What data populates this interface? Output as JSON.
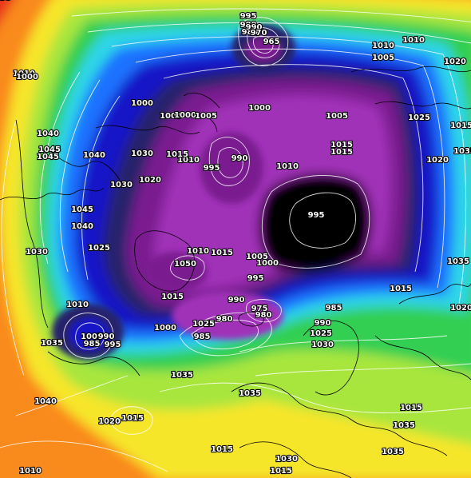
{
  "map": {
    "title_fragment": "",
    "colors": {
      "outer": "#e8321e",
      "orange": "#f98a1a",
      "yellow": "#f6e62a",
      "light_green": "#a8e63c",
      "green": "#33cf52",
      "cyan": "#2fd5e8",
      "blue": "#1c72ff",
      "dark_blue": "#1616c8",
      "navy": "#25206a",
      "purple": "#7a1f90",
      "magenta": "#a030b8",
      "black": "#050005",
      "isobar": "#ffffff",
      "coast": "#000000"
    },
    "labels": [
      {
        "text": "995"
      },
      {
        "text": "980"
      },
      {
        "text": "985"
      },
      {
        "text": "990"
      },
      {
        "text": "970"
      },
      {
        "text": "965"
      },
      {
        "text": "1010"
      },
      {
        "text": "1010"
      },
      {
        "text": "1005"
      },
      {
        "text": "1020"
      },
      {
        "text": "1015"
      },
      {
        "text": "1020"
      },
      {
        "text": "1010"
      },
      {
        "text": "1000"
      },
      {
        "text": "1000"
      },
      {
        "text": "1005"
      },
      {
        "text": "1025"
      },
      {
        "text": "1000"
      },
      {
        "text": "1000"
      },
      {
        "text": "1005"
      },
      {
        "text": "1005"
      },
      {
        "text": "1015"
      },
      {
        "text": "1010"
      },
      {
        "text": "1040"
      },
      {
        "text": "1045"
      },
      {
        "text": "1045"
      },
      {
        "text": "1040"
      },
      {
        "text": "1030"
      },
      {
        "text": "995"
      },
      {
        "text": "990"
      },
      {
        "text": "1010"
      },
      {
        "text": "1015"
      },
      {
        "text": "1015"
      },
      {
        "text": "1020"
      },
      {
        "text": "1035"
      },
      {
        "text": "1030"
      },
      {
        "text": "1020"
      },
      {
        "text": "995"
      },
      {
        "text": "1045"
      },
      {
        "text": "1040"
      },
      {
        "text": "1030"
      },
      {
        "text": "1025"
      },
      {
        "text": "1010"
      },
      {
        "text": "1015"
      },
      {
        "text": "1005"
      },
      {
        "text": "1000"
      },
      {
        "text": "1050"
      },
      {
        "text": "1035"
      },
      {
        "text": "995"
      },
      {
        "text": "1015"
      },
      {
        "text": "1015"
      },
      {
        "text": "1010"
      },
      {
        "text": "990"
      },
      {
        "text": "975"
      },
      {
        "text": "980"
      },
      {
        "text": "985"
      },
      {
        "text": "1020"
      },
      {
        "text": "1035"
      },
      {
        "text": "1005"
      },
      {
        "text": "985"
      },
      {
        "text": "990"
      },
      {
        "text": "995"
      },
      {
        "text": "1000"
      },
      {
        "text": "1025"
      },
      {
        "text": "985"
      },
      {
        "text": "980"
      },
      {
        "text": "990"
      },
      {
        "text": "1025"
      },
      {
        "text": "1030"
      },
      {
        "text": "1035"
      },
      {
        "text": "1035"
      },
      {
        "text": "1040"
      },
      {
        "text": "1020"
      },
      {
        "text": "1015"
      },
      {
        "text": "1015"
      },
      {
        "text": "1035"
      },
      {
        "text": "1035"
      },
      {
        "text": "1030"
      },
      {
        "text": "1015"
      },
      {
        "text": "1010"
      },
      {
        "text": "1015"
      },
      {
        "text": "1035"
      }
    ]
  }
}
